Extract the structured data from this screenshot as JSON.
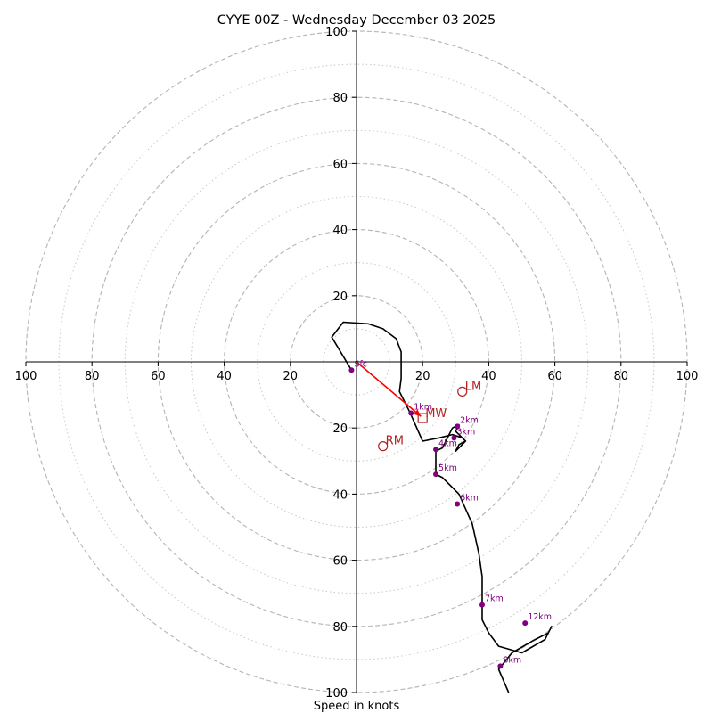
{
  "chart_data": {
    "type": "hodograph",
    "title": "CYYE 00Z - Wednesday December 03 2025",
    "xlabel": "Speed in knots",
    "max_speed": 100,
    "ring_major": [
      20,
      40,
      60,
      80,
      100
    ],
    "ring_minor": [
      10,
      30,
      50,
      70,
      90
    ],
    "tick_values": [
      20,
      40,
      60,
      80,
      100
    ],
    "tick_labels": [
      "20",
      "40",
      "60",
      "80",
      "100"
    ],
    "hodograph_line": {
      "color": "#000000",
      "u": [
        -1.5,
        -7.5,
        -4,
        3.5,
        8,
        12,
        13.5,
        13.5,
        13.5,
        13,
        16,
        20,
        25,
        29,
        32,
        33,
        31,
        30,
        31,
        33,
        30,
        31,
        29,
        26,
        24,
        24,
        26,
        31,
        35,
        37,
        38,
        38,
        38,
        38,
        38,
        40,
        43,
        50,
        57,
        59,
        58,
        54,
        47,
        43,
        46
      ],
      "v": [
        -2.5,
        7.5,
        12,
        11.5,
        10,
        7,
        3,
        0,
        -5,
        -9,
        -15,
        -24,
        -23,
        -22,
        -23,
        -24,
        -26,
        -27,
        -25,
        -24,
        -21,
        -19,
        -20,
        -26,
        -27,
        -34,
        -35,
        -40,
        -49,
        -58,
        -65,
        -68,
        -73,
        -76,
        -78,
        -82,
        -86,
        -88,
        -84,
        -80,
        -82,
        -84,
        -88,
        -93,
        -100
      ]
    },
    "height_points": {
      "color": "#800080",
      "labels": [
        "Sfc",
        "1km",
        "2km",
        "3km",
        "4km",
        "5km",
        "6km",
        "7km",
        "8km",
        "12km"
      ],
      "u": [
        -1.5,
        16.5,
        30.5,
        29.5,
        24,
        24,
        30.5,
        38,
        43.5,
        51
      ],
      "v": [
        -2.5,
        -15.5,
        -19.5,
        -23,
        -26.5,
        -34,
        -43,
        -73.5,
        -92,
        -79
      ]
    },
    "mean_wind": {
      "label": "MW",
      "u": 20,
      "v": -17,
      "color": "#b22222"
    },
    "left_mover": {
      "label": "LM",
      "u": 32,
      "v": -9,
      "color": "#b22222"
    },
    "right_mover": {
      "label": "RM",
      "u": 8,
      "v": -25.5,
      "color": "#b22222"
    },
    "storm_motion_arrow": {
      "u0": 0,
      "v0": 0,
      "u1": 19.5,
      "v1": -16.5,
      "color": "#ff0000"
    }
  }
}
